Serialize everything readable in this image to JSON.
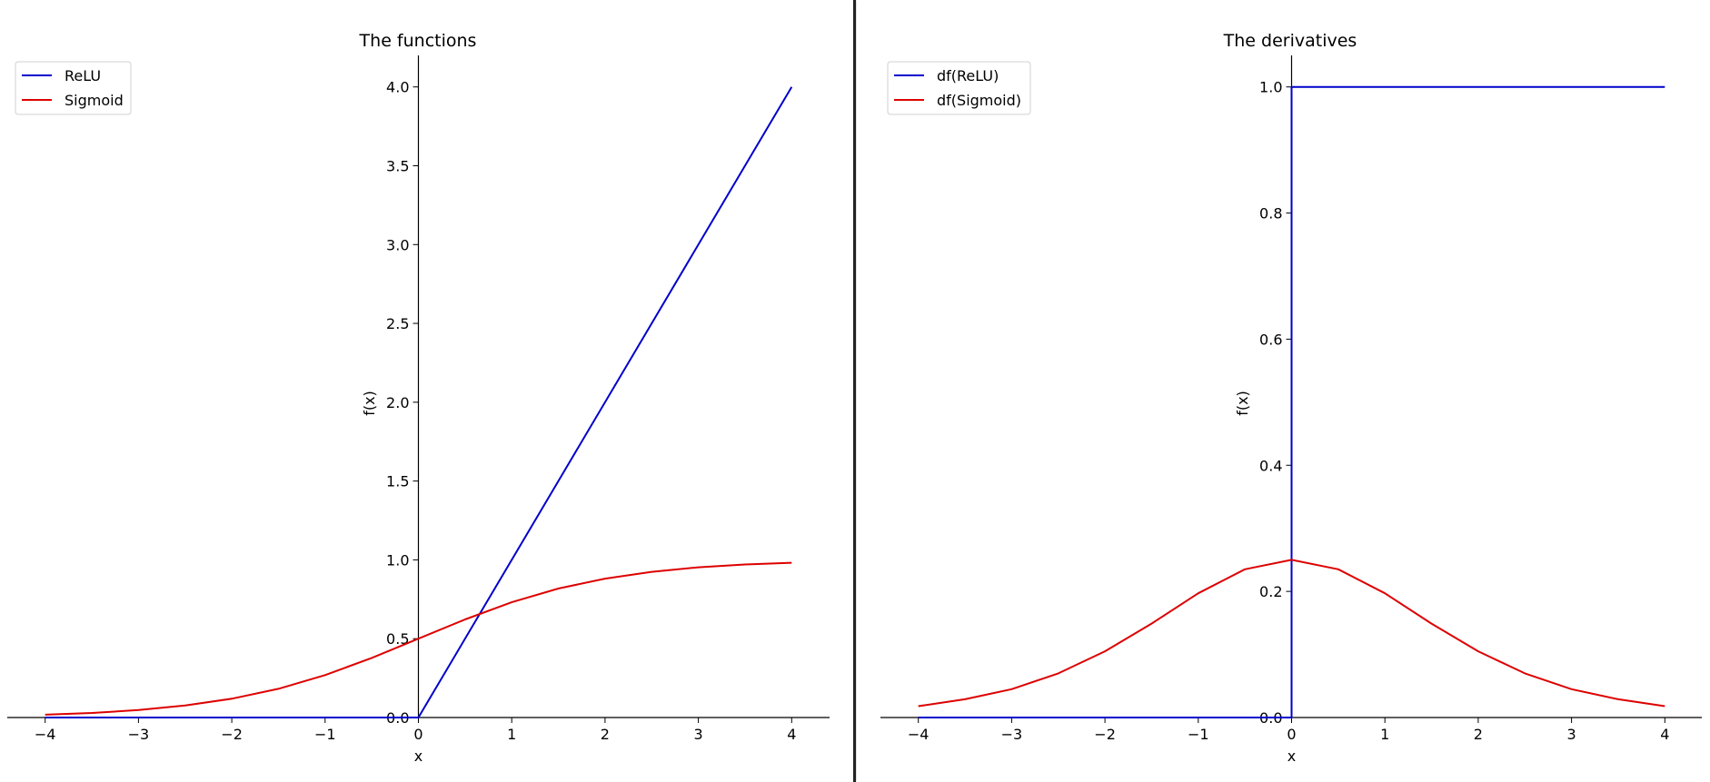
{
  "chart_data": [
    {
      "type": "line",
      "title": "The functions",
      "xlabel": "x",
      "ylabel": "f(x)",
      "xlim": [
        -4.2,
        4.2
      ],
      "ylim": [
        0,
        4.2
      ],
      "xticks": [
        -4,
        -3,
        -2,
        -1,
        0,
        1,
        2,
        3,
        4
      ],
      "xtick_labels": [
        "−4",
        "−3",
        "−2",
        "−1",
        "0",
        "1",
        "2",
        "3",
        "4"
      ],
      "yticks": [
        0,
        0.5,
        1,
        1.5,
        2,
        2.5,
        3,
        3.5,
        4
      ],
      "ytick_labels": [
        "0.0",
        "0.5",
        "1.0",
        "1.5",
        "2.0",
        "2.5",
        "3.0",
        "3.5",
        "4.0"
      ],
      "legend_position": "top-left",
      "grid": false,
      "series": [
        {
          "name": "ReLU",
          "color": "#0000cc",
          "x": [
            -4,
            0,
            4
          ],
          "y": [
            0,
            0,
            4
          ]
        },
        {
          "name": "Sigmoid",
          "color": "#dd0000",
          "x": [
            -4,
            -3.5,
            -3,
            -2.5,
            -2,
            -1.5,
            -1,
            -0.5,
            0,
            0.5,
            1,
            1.5,
            2,
            2.5,
            3,
            3.5,
            4
          ],
          "y": [
            0.018,
            0.029,
            0.047,
            0.076,
            0.119,
            0.182,
            0.269,
            0.378,
            0.5,
            0.622,
            0.731,
            0.818,
            0.881,
            0.924,
            0.953,
            0.971,
            0.982
          ]
        }
      ]
    },
    {
      "type": "line",
      "title": "The derivatives",
      "xlabel": "x",
      "ylabel": "f(x)",
      "xlim": [
        -4.2,
        4.2
      ],
      "ylim": [
        0,
        1.05
      ],
      "xticks": [
        -4,
        -3,
        -2,
        -1,
        0,
        1,
        2,
        3,
        4
      ],
      "xtick_labels": [
        "−4",
        "−3",
        "−2",
        "−1",
        "0",
        "1",
        "2",
        "3",
        "4"
      ],
      "yticks": [
        0,
        0.2,
        0.4,
        0.6,
        0.8,
        1.0
      ],
      "ytick_labels": [
        "0.0",
        "0.2",
        "0.4",
        "0.6",
        "0.8",
        "1.0"
      ],
      "legend_position": "top-left",
      "grid": false,
      "series": [
        {
          "name": "df(ReLU)",
          "color": "#0000cc",
          "x": [
            -4,
            0,
            0,
            4
          ],
          "y": [
            0,
            0,
            1,
            1
          ]
        },
        {
          "name": "df(Sigmoid)",
          "color": "#dd0000",
          "x": [
            -4,
            -3.5,
            -3,
            -2.5,
            -2,
            -1.5,
            -1,
            -0.5,
            0,
            0.5,
            1,
            1.5,
            2,
            2.5,
            3,
            3.5,
            4
          ],
          "y": [
            0.018,
            0.029,
            0.045,
            0.07,
            0.105,
            0.149,
            0.197,
            0.235,
            0.25,
            0.235,
            0.197,
            0.149,
            0.105,
            0.07,
            0.045,
            0.029,
            0.018
          ]
        }
      ]
    }
  ]
}
